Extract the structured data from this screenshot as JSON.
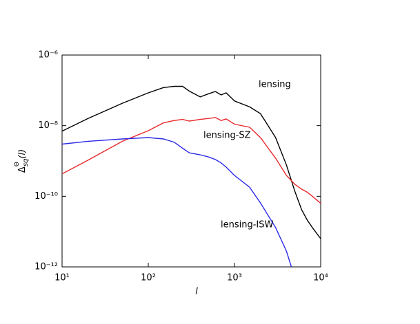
{
  "chart_data": {
    "type": "line",
    "log_x": true,
    "log_y": true,
    "xlabel": "l",
    "ylabel": {
      "base": "Δ",
      "sup": "Θ",
      "sub": "sq",
      "arg": "(l)"
    },
    "xlim": [
      10,
      10000
    ],
    "ylim": [
      1e-12,
      1e-06
    ],
    "xticks": [
      {
        "value": 10,
        "label": "10¹"
      },
      {
        "value": 100,
        "label": "10²"
      },
      {
        "value": 1000,
        "label": "10³"
      },
      {
        "value": 10000,
        "label": "10⁴"
      }
    ],
    "yticks": [
      {
        "value": 1e-12,
        "label": "10⁻¹²"
      },
      {
        "value": 1e-10,
        "label": "10⁻¹⁰"
      },
      {
        "value": 1e-08,
        "label": "10⁻⁸"
      },
      {
        "value": 1e-06,
        "label": "10⁻⁶"
      }
    ],
    "x": [
      10,
      20,
      50,
      100,
      150,
      200,
      250,
      300,
      400,
      500,
      600,
      700,
      800,
      1000,
      1500,
      2000,
      3000,
      4000,
      5000,
      6000,
      7000,
      8000,
      10000
    ],
    "series": [
      {
        "name": "lensing",
        "color": "#000000",
        "values": [
          7e-09,
          1.6e-08,
          4.3e-08,
          8.5e-08,
          1.2e-07,
          1.3e-07,
          1.3e-07,
          9.5e-08,
          6.5e-08,
          8e-08,
          9.3e-08,
          7.4e-08,
          8.5e-08,
          5e-08,
          3.4e-08,
          2.2e-08,
          4.6e-09,
          7.7e-10,
          1.4e-10,
          4.2e-11,
          2.1e-11,
          1.3e-11,
          6.3e-12
        ]
      },
      {
        "name": "lensing-SZ",
        "color": "#e8282b",
        "values": [
          4.3e-10,
          1.05e-09,
          3.6e-09,
          7.2e-09,
          1.2e-08,
          1.4e-08,
          1.5e-08,
          1.35e-08,
          1.5e-08,
          1.6e-08,
          1.7e-08,
          1.4e-08,
          1.55e-08,
          1.1e-08,
          9e-09,
          4.6e-09,
          1.2e-09,
          3.9e-10,
          2.2e-10,
          1.6e-10,
          1.3e-10,
          1e-10,
          6.3e-11
        ]
      },
      {
        "name": "lensing-ISW",
        "color": "#2a2ae8",
        "values": [
          3e-09,
          3.6e-09,
          4.2e-09,
          4.6e-09,
          4.2e-09,
          3.4e-09,
          2.3e-09,
          1.7e-09,
          1.5e-09,
          1.3e-09,
          1.1e-09,
          8.8e-10,
          6.7e-10,
          3.9e-10,
          1.8e-10,
          6.5e-11,
          1.3e-11,
          2.8e-12,
          5e-13,
          null,
          null,
          null,
          null
        ]
      }
    ]
  }
}
